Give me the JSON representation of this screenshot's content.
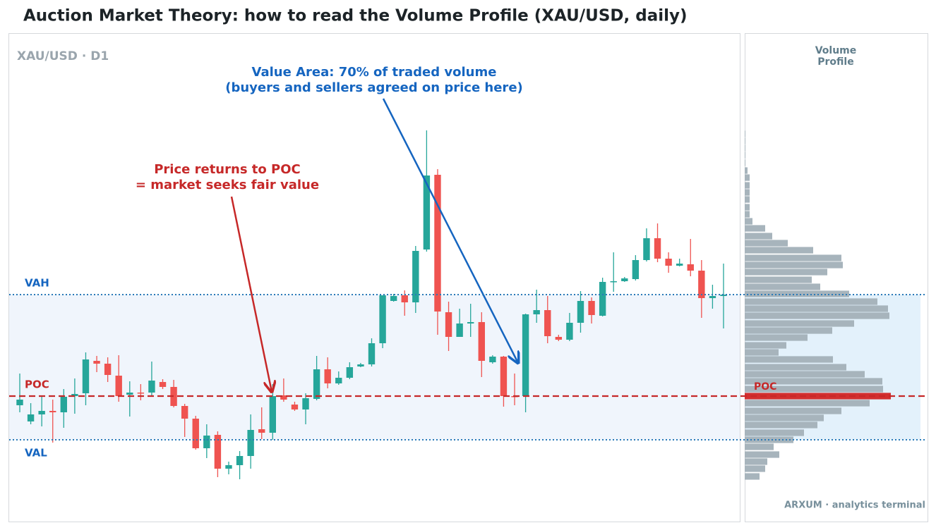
{
  "chart_data": {
    "type": "candlestick",
    "title": "Auction Market Theory: how to read the Volume Profile  (XAU/USD, daily)",
    "subtitle": "XAU/USD · D1",
    "ylim": [
      0,
      693
    ],
    "up_color": "#26a69a",
    "down_color": "#ef5350",
    "open": [
      165,
      142,
      152,
      157,
      155,
      178,
      182,
      228,
      224,
      207,
      180,
      183,
      183,
      198,
      191,
      164,
      146,
      104,
      123,
      75,
      80,
      93,
      131,
      126,
      179,
      166,
      159,
      174,
      216,
      196,
      204,
      220,
      223,
      253,
      313,
      321,
      311,
      386,
      492,
      297,
      262,
      281,
      283,
      226,
      234,
      178,
      178,
      294,
      300,
      262,
      258,
      282,
      313,
      292,
      340,
      341,
      344,
      371,
      402,
      373,
      363,
      365,
      356,
      317,
      320
    ],
    "high": [
      210,
      168,
      178,
      173,
      188,
      203,
      240,
      235,
      233,
      236,
      199,
      195,
      227,
      202,
      201,
      167,
      150,
      138,
      128,
      85,
      100,
      152,
      162,
      195,
      203,
      170,
      182,
      235,
      233,
      213,
      226,
      225,
      260,
      321,
      323,
      328,
      391,
      555,
      500,
      312,
      302,
      309,
      297,
      236,
      235,
      210,
      295,
      329,
      320,
      265,
      296,
      327,
      318,
      346,
      382,
      347,
      378,
      416,
      423,
      382,
      373,
      401,
      371,
      336,
      366
    ],
    "low": [
      155,
      138,
      135,
      112,
      133,
      153,
      165,
      212,
      198,
      170,
      149,
      172,
      178,
      188,
      162,
      120,
      102,
      90,
      63,
      67,
      60,
      75,
      117,
      116,
      170,
      157,
      138,
      172,
      189,
      194,
      202,
      219,
      220,
      246,
      312,
      292,
      296,
      383,
      265,
      242,
      262,
      262,
      205,
      224,
      163,
      165,
      155,
      282,
      253,
      256,
      256,
      268,
      281,
      291,
      326,
      340,
      342,
      369,
      368,
      353,
      362,
      348,
      289,
      302,
      274
    ],
    "close": [
      173,
      152,
      157,
      155,
      177,
      181,
      230,
      224,
      208,
      178,
      183,
      182,
      200,
      191,
      164,
      146,
      104,
      122,
      75,
      80,
      93,
      130,
      126,
      178,
      173,
      159,
      175,
      216,
      196,
      204,
      219,
      223,
      253,
      321,
      320,
      311,
      384,
      491,
      298,
      262,
      281,
      283,
      228,
      234,
      178,
      177,
      294,
      300,
      263,
      258,
      282,
      313,
      293,
      340,
      341,
      345,
      371,
      402,
      373,
      363,
      366,
      356,
      317,
      320,
      322
    ],
    "levels": [
      {
        "label": "VAH",
        "value": 322,
        "color": "#1565c0"
      },
      {
        "label": "POC",
        "value": 178,
        "color": "#c62828"
      },
      {
        "label": "VAL",
        "value": 116,
        "color": "#1565c0"
      }
    ],
    "annotations": [
      {
        "lines": [
          "Value Area: 70% of traded volume",
          "(buyers and sellers agreed on price here)"
        ],
        "color": "#1565c0"
      },
      {
        "lines": [
          "Price returns to POC",
          "= market seeks fair value"
        ],
        "color": "#c62828"
      }
    ],
    "profile": {
      "title": "Volume Profile",
      "xlim": [
        0,
        250
      ],
      "color": "#a7b4bc",
      "poc_color": "#d32f2f",
      "prices": [
        550,
        540,
        530,
        520,
        509,
        498,
        488,
        477,
        467,
        457,
        446,
        436,
        426,
        416,
        405,
        395,
        385,
        374,
        364,
        354,
        343,
        333,
        323,
        312,
        302,
        292,
        281,
        271,
        261,
        250,
        240,
        230,
        219,
        209,
        199,
        188,
        178,
        168,
        157,
        147,
        137,
        126,
        116,
        106,
        95,
        85,
        75,
        64
      ],
      "volumes": [
        1,
        1,
        1,
        1,
        1,
        4,
        7,
        7,
        7,
        7,
        7,
        7,
        11,
        29,
        39,
        61,
        97,
        137,
        139,
        117,
        95,
        107,
        148,
        188,
        203,
        205,
        155,
        124,
        89,
        59,
        48,
        125,
        144,
        170,
        195,
        196,
        207,
        177,
        137,
        112,
        103,
        84,
        69,
        41,
        49,
        32,
        29,
        21
      ]
    },
    "footer": "ARXUM · analytics terminal"
  }
}
